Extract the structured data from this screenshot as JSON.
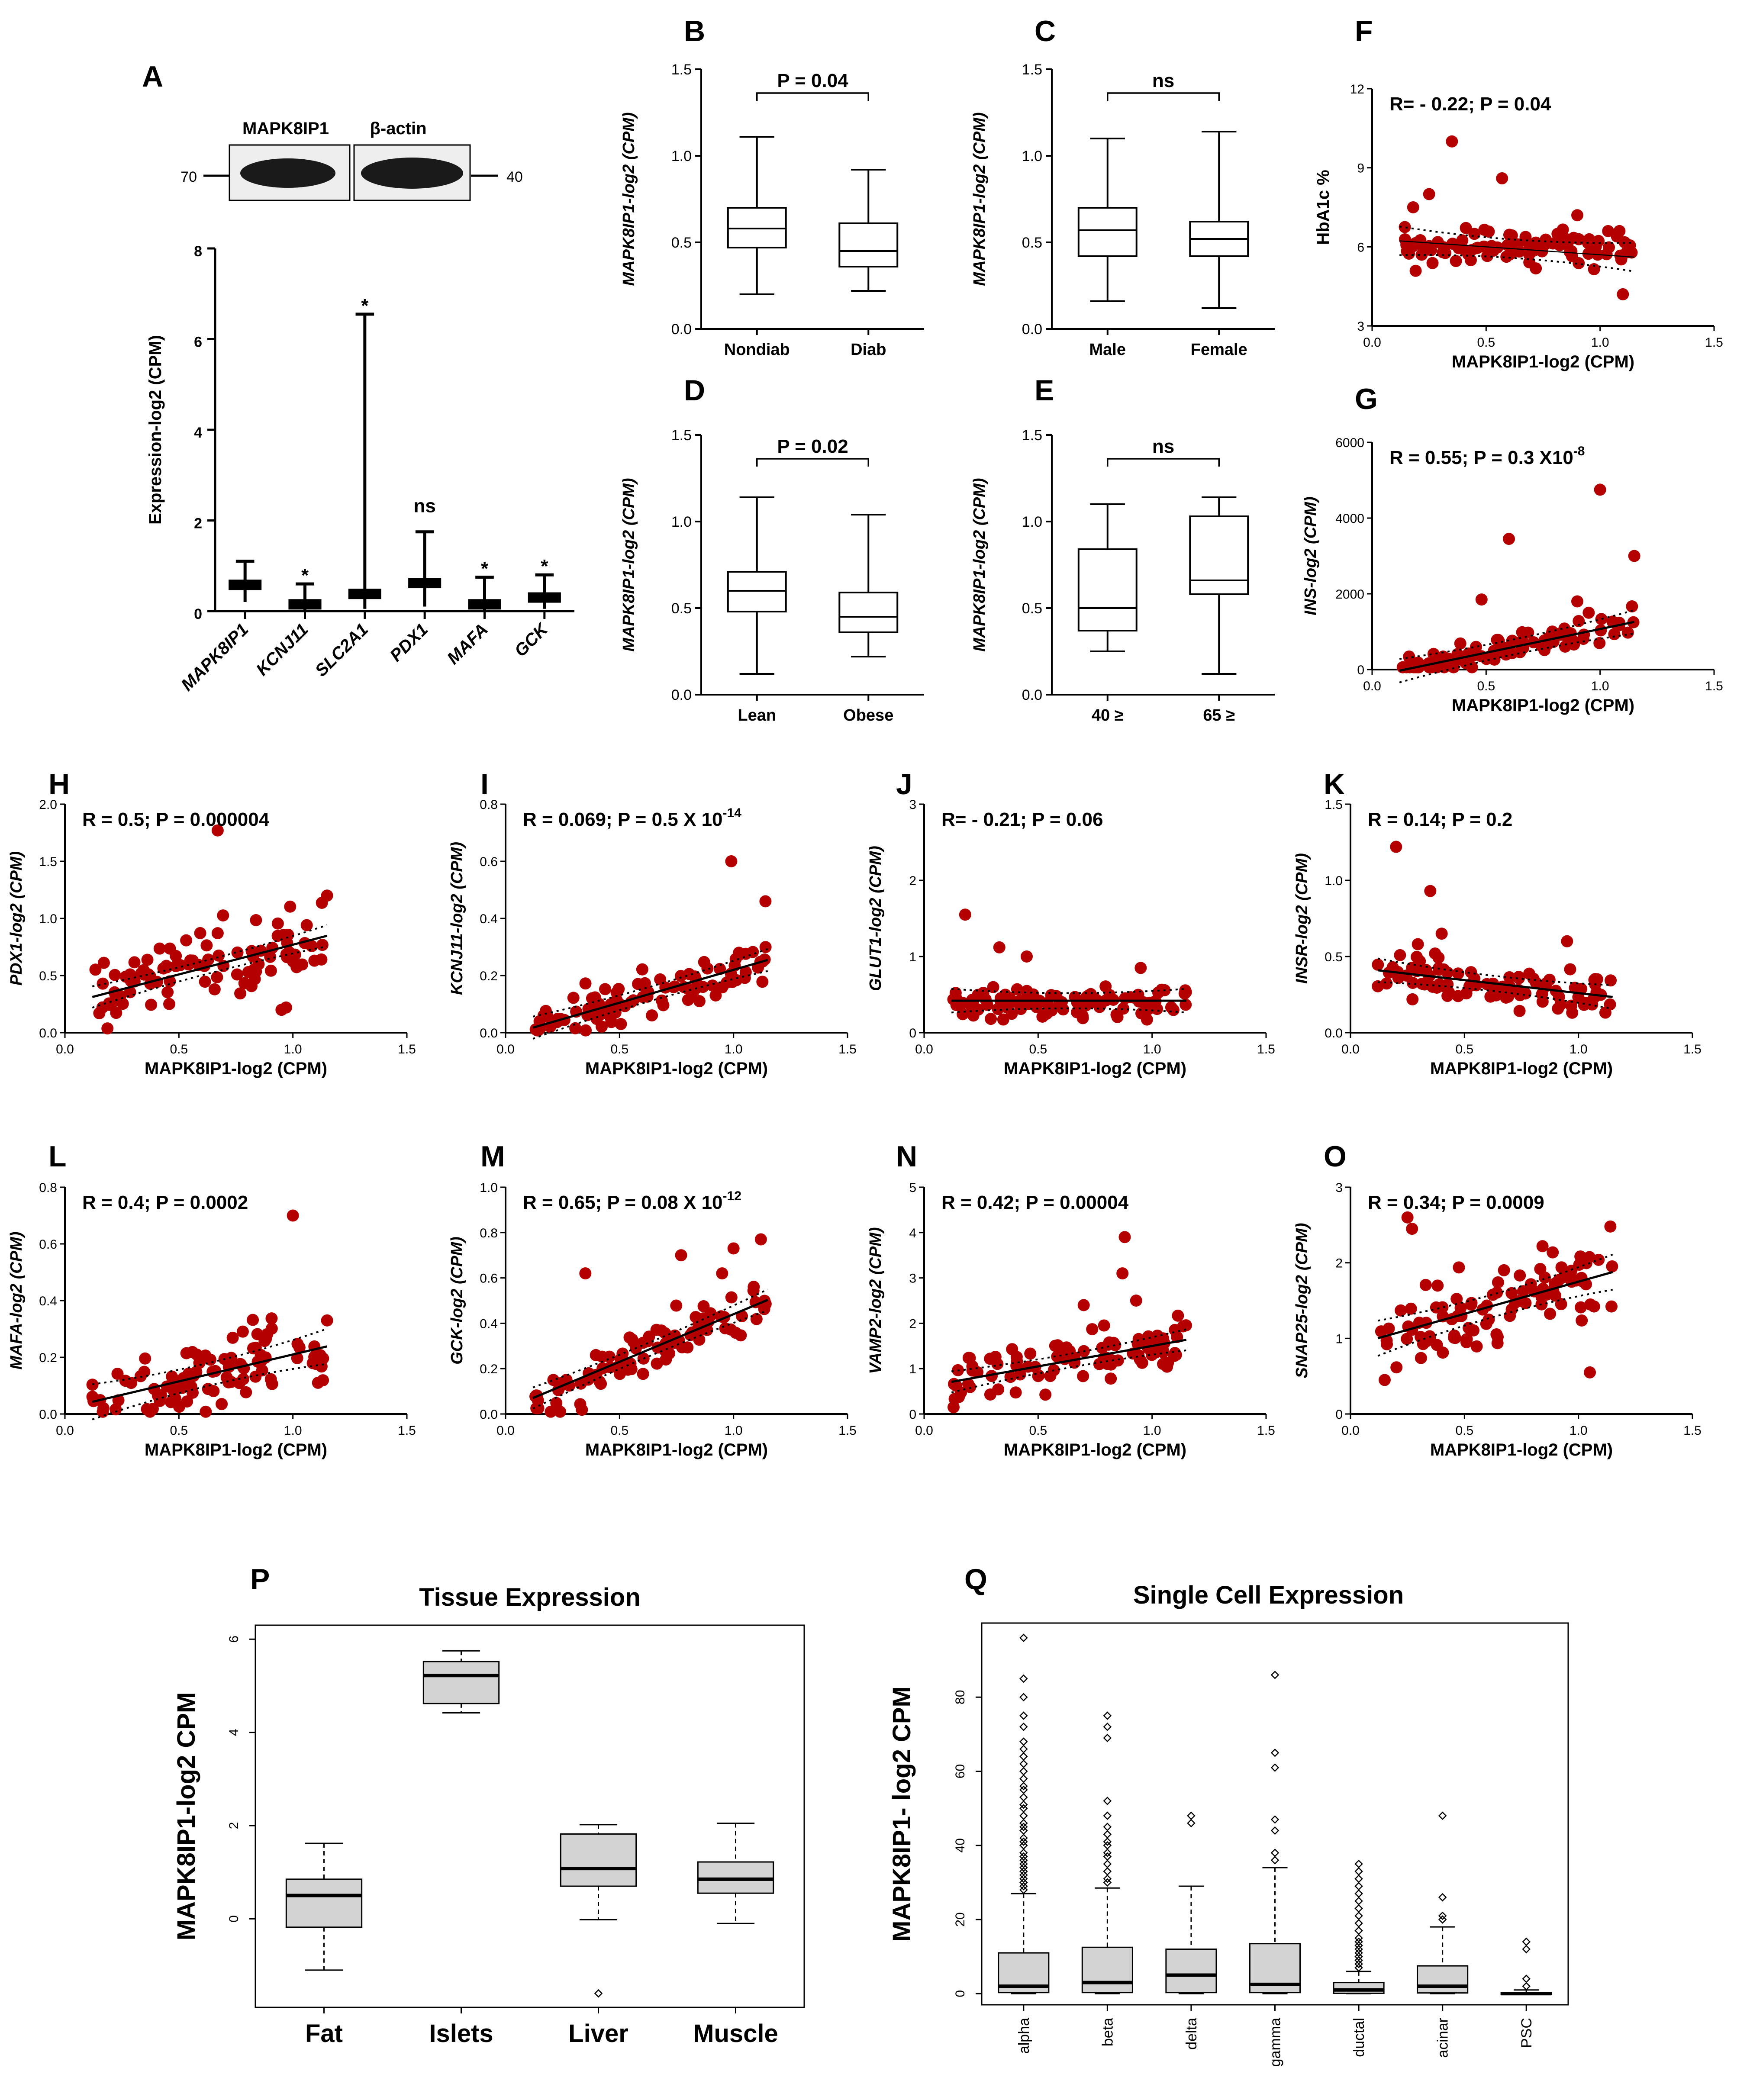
{
  "colors": {
    "dot": "#b40000",
    "box_fill": "#d3d3d3",
    "line": "#000000"
  },
  "chart_data": [
    {
      "id": "A",
      "type": "bar",
      "panel": "A",
      "ylabel": "Expression-log2 (CPM)",
      "ylim": [
        0,
        8
      ],
      "yticks": [
        "0",
        "2",
        "4",
        "6",
        "8"
      ],
      "blot": {
        "protein_label": "MAPK8IP1",
        "control_label": "β-actin",
        "left_marker": "70",
        "right_marker": "40"
      },
      "categories": [
        "MAPK8IP1",
        "KCNJ11",
        "SLC2A1",
        "PDX1",
        "MAFA",
        "GCK"
      ],
      "values": [
        0.58,
        0.15,
        0.38,
        0.62,
        0.15,
        0.3
      ],
      "err_high": [
        1.1,
        0.6,
        6.55,
        1.75,
        0.75,
        0.8
      ],
      "err_low": [
        0.2,
        0.02,
        0.05,
        0.1,
        0.02,
        0.05
      ],
      "annotations": [
        "",
        "*",
        "*",
        "ns",
        "*",
        "*"
      ]
    },
    {
      "id": "B",
      "type": "box",
      "panel": "B",
      "ylabel": "MAPK8IP1-log2 (CPM)",
      "ylim": [
        0,
        1.5
      ],
      "yticks": [
        "0.0",
        "0.5",
        "1.0",
        "1.5"
      ],
      "categories": [
        "Nondiab",
        "Diab"
      ],
      "comparison": "P = 0.04",
      "boxes": [
        {
          "min": 0.2,
          "q1": 0.47,
          "median": 0.58,
          "q3": 0.7,
          "max": 1.11
        },
        {
          "min": 0.22,
          "q1": 0.36,
          "median": 0.45,
          "q3": 0.61,
          "max": 0.92
        }
      ]
    },
    {
      "id": "C",
      "type": "box",
      "panel": "C",
      "ylabel": "MAPK8IP1-log2 (CPM)",
      "ylim": [
        0,
        1.5
      ],
      "yticks": [
        "0.0",
        "0.5",
        "1.0",
        "1.5"
      ],
      "categories": [
        "Male",
        "Female"
      ],
      "comparison": "ns",
      "boxes": [
        {
          "min": 0.16,
          "q1": 0.42,
          "median": 0.57,
          "q3": 0.7,
          "max": 1.1
        },
        {
          "min": 0.12,
          "q1": 0.42,
          "median": 0.52,
          "q3": 0.62,
          "max": 1.14
        }
      ]
    },
    {
      "id": "D",
      "type": "box",
      "panel": "D",
      "ylabel": "MAPK8IP1-log2 (CPM)",
      "ylim": [
        0,
        1.5
      ],
      "yticks": [
        "0.0",
        "0.5",
        "1.0",
        "1.5"
      ],
      "categories": [
        "Lean",
        "Obese"
      ],
      "comparison": "P = 0.02",
      "boxes": [
        {
          "min": 0.12,
          "q1": 0.48,
          "median": 0.6,
          "q3": 0.71,
          "max": 1.14
        },
        {
          "min": 0.22,
          "q1": 0.36,
          "median": 0.45,
          "q3": 0.59,
          "max": 1.04
        }
      ]
    },
    {
      "id": "E",
      "type": "box",
      "panel": "E",
      "ylabel": "MAPK8IP1-log2 (CPM)",
      "ylim": [
        0,
        1.5
      ],
      "yticks": [
        "0.0",
        "0.5",
        "1.0",
        "1.5"
      ],
      "categories": [
        "40 ≥",
        "65 ≥"
      ],
      "comparison": "ns",
      "boxes": [
        {
          "min": 0.25,
          "q1": 0.37,
          "median": 0.5,
          "q3": 0.84,
          "max": 1.1
        },
        {
          "min": 0.12,
          "q1": 0.58,
          "median": 0.66,
          "q3": 1.03,
          "max": 1.14
        }
      ]
    },
    {
      "id": "F",
      "type": "scatter",
      "panel": "F",
      "xlabel": "MAPK8IP1-log2 (CPM)",
      "ylabel": "HbA1c %",
      "ylabel_italic": false,
      "xlim": [
        0,
        1.5
      ],
      "ylim": [
        3,
        12
      ],
      "xticks": [
        "0.0",
        "0.5",
        "1.0",
        "1.5"
      ],
      "yticks": [
        "3",
        "6",
        "9",
        "12"
      ],
      "stat": "R= - 0.22; P = 0.04",
      "fit": {
        "slope": -0.6,
        "intercept": 6.3,
        "band": 0.35,
        "solid": false
      },
      "seed": 11,
      "n": 95,
      "base": 6.0,
      "noise": 0.45,
      "outliers": [
        [
          0.35,
          10.0
        ],
        [
          0.57,
          8.6
        ],
        [
          0.25,
          8.0
        ],
        [
          1.1,
          4.2
        ],
        [
          0.18,
          7.5
        ],
        [
          0.9,
          7.2
        ]
      ]
    },
    {
      "id": "G",
      "type": "scatter",
      "panel": "G",
      "xlabel": "MAPK8IP1-log2 (CPM)",
      "ylabel": "INS-log2 (CPM)",
      "ylabel_italic": true,
      "xlim": [
        0,
        1.5
      ],
      "ylim": [
        0,
        6000
      ],
      "xticks": [
        "0.0",
        "0.5",
        "1.0",
        "1.5"
      ],
      "yticks": [
        "0",
        "2000",
        "4000",
        "6000"
      ],
      "stat": "R = 0.55; P = 0.3 X10",
      "stat_exp": "-8",
      "fit": {
        "slope": 1250,
        "intercept": -180,
        "band": 200,
        "solid": true
      },
      "seed": 23,
      "n": 95,
      "base": null,
      "noise": 260,
      "outliers": [
        [
          1.0,
          4750
        ],
        [
          0.6,
          3450
        ],
        [
          1.15,
          3000
        ],
        [
          0.48,
          1850
        ],
        [
          0.9,
          1800
        ],
        [
          0.95,
          1500
        ]
      ]
    },
    {
      "id": "H",
      "type": "scatter",
      "panel": "H",
      "xlabel": "MAPK8IP1-log2 (CPM)",
      "ylabel": "PDX1-log2 (CPM)",
      "ylabel_italic": true,
      "xlim": [
        0,
        1.5
      ],
      "ylim": [
        0,
        2.0
      ],
      "xticks": [
        "0.0",
        "0.5",
        "1.0",
        "1.5"
      ],
      "yticks": [
        "0.0",
        "0.5",
        "1.0",
        "1.5",
        "2.0"
      ],
      "stat": "R = 0.5; P = 0.000004",
      "fit": {
        "slope": 0.52,
        "intercept": 0.25,
        "band": 0.06,
        "solid": true
      },
      "seed": 37,
      "n": 95,
      "base": null,
      "noise": 0.2,
      "outliers": [
        [
          0.67,
          1.77
        ],
        [
          1.15,
          1.2
        ],
        [
          0.95,
          0.2
        ],
        [
          0.97,
          0.22
        ]
      ]
    },
    {
      "id": "I",
      "type": "scatter",
      "panel": "I",
      "xlabel": "MAPK8IP1-log2 (CPM)",
      "ylabel": "KCNJ11-log2 (CPM)",
      "ylabel_italic": true,
      "xlim": [
        0,
        1.5
      ],
      "ylim": [
        0,
        0.8
      ],
      "xticks": [
        "0.0",
        "0.5",
        "1.0",
        "1.5"
      ],
      "yticks": [
        "0.0",
        "0.2",
        "0.4",
        "0.6",
        "0.8"
      ],
      "stat": "R = 0.069; P = 0.5 X 10",
      "stat_exp": "-14",
      "fit": {
        "slope": 0.23,
        "intercept": -0.01,
        "band": 0.025,
        "solid": true
      },
      "seed": 41,
      "n": 95,
      "base": null,
      "noise": 0.05,
      "outliers": [
        [
          0.99,
          0.6
        ],
        [
          1.14,
          0.46
        ]
      ]
    },
    {
      "id": "J",
      "type": "scatter",
      "panel": "J",
      "xlabel": "MAPK8IP1-log2 (CPM)",
      "ylabel": "GLUT1-log2 (CPM)",
      "ylabel_italic": true,
      "xlim": [
        0,
        1.5
      ],
      "ylim": [
        0,
        3
      ],
      "xticks": [
        "0.0",
        "0.5",
        "1.0",
        "1.5"
      ],
      "yticks": [
        "0",
        "1",
        "2",
        "3"
      ],
      "stat": "R= - 0.21; P = 0.06",
      "fit": {
        "slope": 0.0,
        "intercept": 0.42,
        "band": 0.1,
        "solid": true
      },
      "seed": 53,
      "n": 95,
      "base": 0.4,
      "noise": 0.15,
      "outliers": [
        [
          0.18,
          1.55
        ],
        [
          0.33,
          1.12
        ],
        [
          0.45,
          1.0
        ],
        [
          0.95,
          0.85
        ]
      ]
    },
    {
      "id": "K",
      "type": "scatter",
      "panel": "K",
      "xlabel": "MAPK8IP1-log2 (CPM)",
      "ylabel": "INSR-log2 (CPM)",
      "ylabel_italic": true,
      "xlim": [
        0,
        1.5
      ],
      "ylim": [
        0,
        1.5
      ],
      "xticks": [
        "0.0",
        "0.5",
        "1.0",
        "1.5"
      ],
      "yticks": [
        "0.0",
        "0.5",
        "1.0",
        "1.5"
      ],
      "stat": "R = 0.14; P = 0.2",
      "fit": {
        "slope": -0.17,
        "intercept": 0.43,
        "band": 0.05,
        "solid": true
      },
      "seed": 67,
      "n": 95,
      "base": null,
      "noise": 0.1,
      "outliers": [
        [
          0.2,
          1.22
        ],
        [
          0.35,
          0.93
        ],
        [
          0.4,
          0.65
        ],
        [
          0.95,
          0.6
        ]
      ]
    },
    {
      "id": "L",
      "type": "scatter",
      "panel": "L",
      "xlabel": "MAPK8IP1-log2 (CPM)",
      "ylabel": "MAFA-log2 (CPM)",
      "ylabel_italic": true,
      "xlim": [
        0,
        1.5
      ],
      "ylim": [
        0,
        0.8
      ],
      "xticks": [
        "0.0",
        "0.5",
        "1.0",
        "1.5"
      ],
      "yticks": [
        "0.0",
        "0.2",
        "0.4",
        "0.6",
        "0.8"
      ],
      "stat": "R = 0.4; P = 0.0002",
      "fit": {
        "slope": 0.19,
        "intercept": 0.02,
        "band": 0.04,
        "solid": true
      },
      "seed": 71,
      "n": 95,
      "base": null,
      "noise": 0.08,
      "outliers": [
        [
          1.0,
          0.7
        ],
        [
          1.15,
          0.33
        ]
      ]
    },
    {
      "id": "M",
      "type": "scatter",
      "panel": "M",
      "xlabel": "MAPK8IP1-log2 (CPM)",
      "ylabel": "GCK-log2 (CPM)",
      "ylabel_italic": true,
      "xlim": [
        0,
        1.5
      ],
      "ylim": [
        0,
        1.0
      ],
      "xticks": [
        "0.0",
        "0.5",
        "1.0",
        "1.5"
      ],
      "yticks": [
        "0.0",
        "0.2",
        "0.4",
        "0.6",
        "0.8",
        "1.0"
      ],
      "stat": "R = 0.65; P = 0.08 X 10",
      "stat_exp": "-12",
      "fit": {
        "slope": 0.42,
        "intercept": 0.02,
        "band": 0.03,
        "solid": true
      },
      "seed": 83,
      "n": 95,
      "base": null,
      "noise": 0.07,
      "outliers": [
        [
          1.12,
          0.77
        ],
        [
          0.35,
          0.62
        ],
        [
          0.77,
          0.7
        ],
        [
          1.0,
          0.73
        ],
        [
          0.95,
          0.62
        ]
      ]
    },
    {
      "id": "N",
      "type": "scatter",
      "panel": "N",
      "xlabel": "MAPK8IP1-log2 (CPM)",
      "ylabel": "VAMP2-log2 (CPM)",
      "ylabel_italic": true,
      "xlim": [
        0,
        1.5
      ],
      "ylim": [
        0,
        5
      ],
      "xticks": [
        "0.0",
        "0.5",
        "1.0",
        "1.5"
      ],
      "yticks": [
        "0",
        "1",
        "2",
        "3",
        "4",
        "5"
      ],
      "stat": "R = 0.42; P = 0.00004",
      "fit": {
        "slope": 0.9,
        "intercept": 0.6,
        "band": 0.15,
        "solid": true
      },
      "seed": 97,
      "n": 95,
      "base": null,
      "noise": 0.35,
      "outliers": [
        [
          0.88,
          3.9
        ],
        [
          0.87,
          3.1
        ],
        [
          0.93,
          2.5
        ],
        [
          0.7,
          2.4
        ]
      ]
    },
    {
      "id": "O",
      "type": "scatter",
      "panel": "O",
      "xlabel": "MAPK8IP1-log2 (CPM)",
      "ylabel": "SNAP25-log2 (CPM)",
      "ylabel_italic": true,
      "xlim": [
        0,
        1.5
      ],
      "ylim": [
        0,
        3
      ],
      "xticks": [
        "0.0",
        "0.5",
        "1.0",
        "1.5"
      ],
      "yticks": [
        "0",
        "1",
        "2",
        "3"
      ],
      "stat": "R = 0.34; P = 0.0009",
      "fit": {
        "slope": 0.85,
        "intercept": 0.9,
        "band": 0.15,
        "solid": true
      },
      "seed": 101,
      "n": 95,
      "base": null,
      "noise": 0.35,
      "outliers": [
        [
          0.25,
          2.6
        ],
        [
          0.27,
          2.45
        ],
        [
          1.14,
          2.48
        ],
        [
          1.05,
          0.55
        ],
        [
          0.15,
          0.45
        ]
      ]
    },
    {
      "id": "P",
      "type": "box",
      "panel": "P",
      "title": "Tissue Expression",
      "ylabel": "MAPK8IP1-log2 CPM",
      "ylim": [
        -1.9,
        6.3
      ],
      "yticks": [
        "0",
        "2",
        "4",
        "6"
      ],
      "categories": [
        "Fat",
        "Islets",
        "Liver",
        "Muscle"
      ],
      "boxes": [
        {
          "min": -1.1,
          "q1": -0.18,
          "median": 0.5,
          "q3": 0.85,
          "max": 1.62,
          "outliers": []
        },
        {
          "min": 4.42,
          "q1": 4.62,
          "median": 5.22,
          "q3": 5.52,
          "max": 5.75,
          "outliers": []
        },
        {
          "min": -0.02,
          "q1": 0.7,
          "median": 1.08,
          "q3": 1.82,
          "max": 2.02,
          "outliers": [
            -1.6
          ]
        },
        {
          "min": -0.1,
          "q1": 0.55,
          "median": 0.85,
          "q3": 1.22,
          "max": 2.05,
          "outliers": []
        }
      ]
    },
    {
      "id": "Q",
      "type": "box",
      "panel": "Q",
      "title": "Single Cell Expression",
      "ylabel": "MAPK8IP1- log2 CPM",
      "ylim": [
        -3,
        100
      ],
      "yticks": [
        "0",
        "20",
        "40",
        "60",
        "80"
      ],
      "categories": [
        "alpha",
        "beta",
        "delta",
        "gamma",
        "ductal",
        "acinar",
        "PSC"
      ],
      "boxes": [
        {
          "min": 0,
          "q1": 0.3,
          "median": 2,
          "q3": 11,
          "max": 27,
          "outliers": [
            96,
            85,
            80,
            75,
            72,
            68,
            66,
            64,
            62,
            60,
            58,
            56,
            55,
            53,
            51,
            50,
            48,
            46,
            45,
            44,
            42,
            41,
            40,
            38,
            37,
            36,
            35,
            34,
            33,
            32,
            31,
            30,
            29,
            28
          ]
        },
        {
          "min": 0,
          "q1": 0.3,
          "median": 3,
          "q3": 12.5,
          "max": 28.5,
          "outliers": [
            75,
            72,
            69,
            52,
            48,
            45,
            43,
            41,
            40,
            38,
            37,
            35,
            33,
            31,
            30
          ]
        },
        {
          "min": 0,
          "q1": 0.3,
          "median": 5,
          "q3": 12,
          "max": 29,
          "outliers": [
            48,
            46
          ]
        },
        {
          "min": 0,
          "q1": 0.3,
          "median": 2.5,
          "q3": 13.5,
          "max": 34,
          "outliers": [
            86,
            65,
            61,
            47,
            44,
            38,
            36
          ]
        },
        {
          "min": 0,
          "q1": 0.1,
          "median": 1,
          "q3": 3,
          "max": 6,
          "outliers": [
            35,
            33,
            31,
            29,
            27,
            25,
            23,
            21,
            19,
            17,
            15,
            14,
            13,
            12,
            11,
            10,
            9,
            8,
            7
          ]
        },
        {
          "min": 0,
          "q1": 0.2,
          "median": 2,
          "q3": 7.5,
          "max": 18,
          "outliers": [
            48,
            26,
            21,
            20
          ]
        },
        {
          "min": 0,
          "q1": 0,
          "median": 0,
          "q3": 0.3,
          "max": 1,
          "outliers": [
            14,
            12,
            4,
            2
          ]
        }
      ]
    }
  ]
}
